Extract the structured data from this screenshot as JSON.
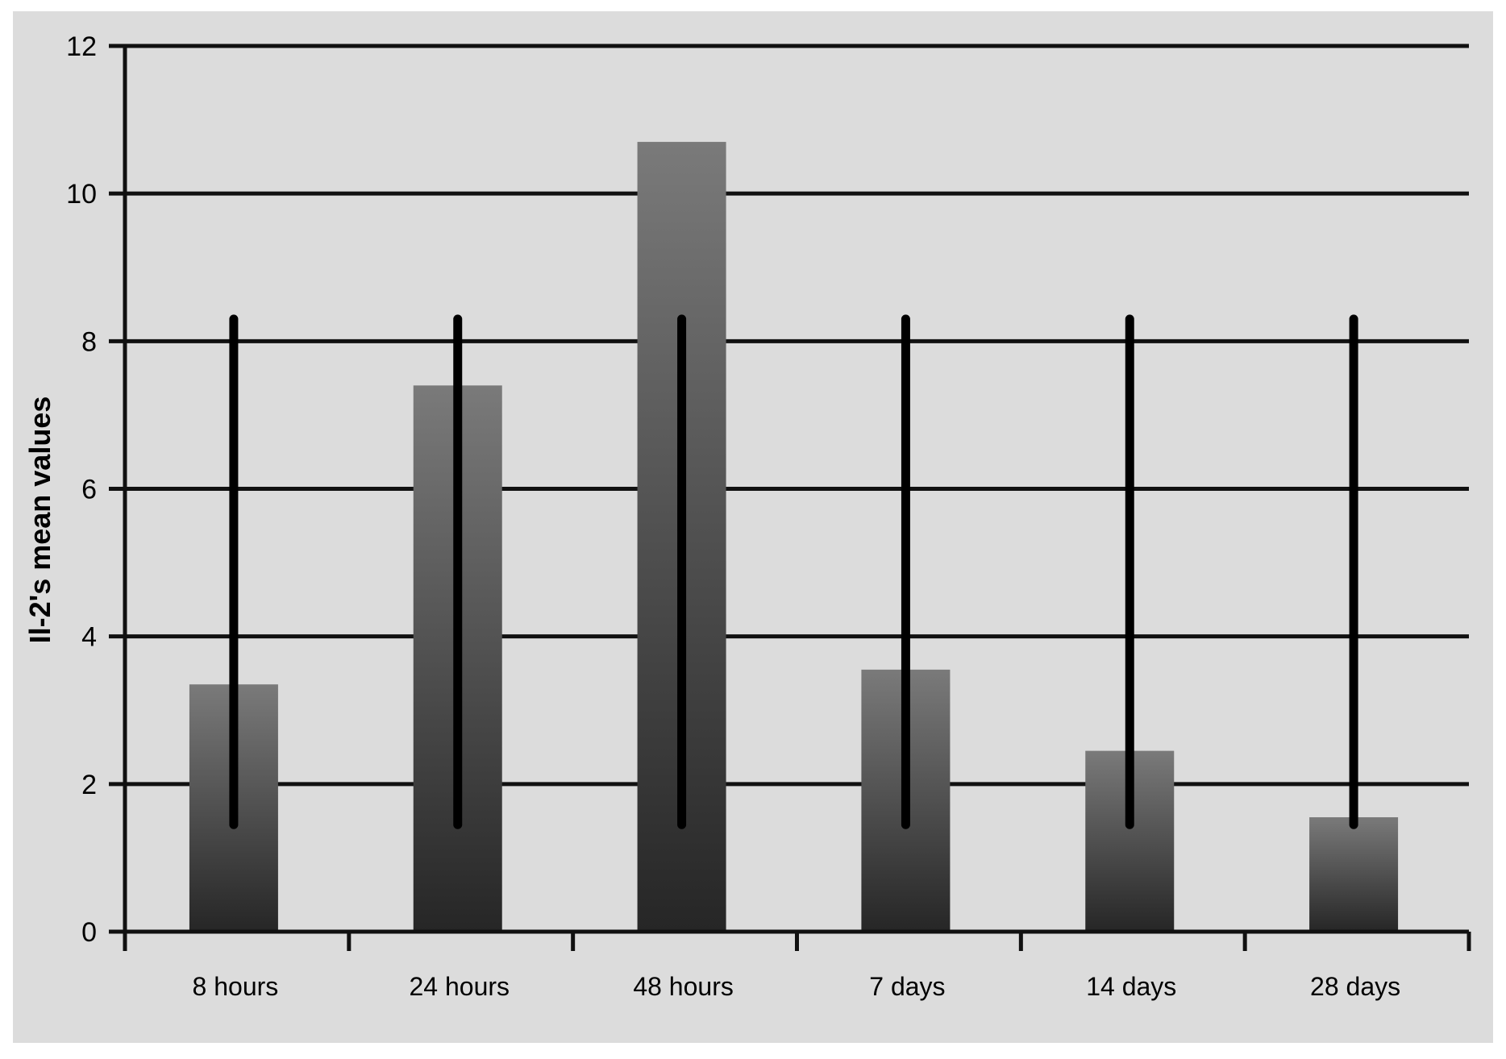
{
  "chart_data": {
    "type": "bar",
    "title": "",
    "xlabel": "",
    "ylabel": "Il-2's mean values",
    "categories": [
      "8 hours",
      "24 hours",
      "48 hours",
      "7 days",
      "14 days",
      "28 days"
    ],
    "values": [
      3.35,
      7.4,
      10.7,
      3.55,
      2.45,
      1.55
    ],
    "error_bars": {
      "lower": [
        1.45,
        1.45,
        1.45,
        1.45,
        1.45,
        1.45
      ],
      "upper": [
        8.3,
        8.3,
        8.3,
        8.3,
        8.3,
        8.3
      ]
    },
    "ylim": [
      0,
      12
    ],
    "yticks": [
      0,
      2,
      4,
      6,
      8,
      10,
      12
    ],
    "grid": true,
    "legend": "none",
    "colors": {
      "background": "#dcdcdc",
      "bar_top": "#7a7a7a",
      "bar_bottom": "#2a2a2a",
      "grid": "#111111",
      "error_bar": "#000000"
    }
  }
}
